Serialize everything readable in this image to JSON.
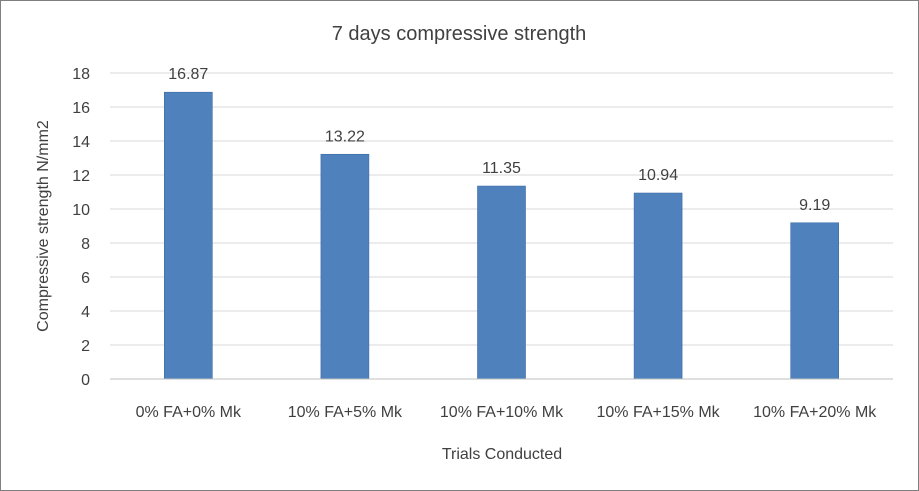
{
  "chart_data": {
    "type": "bar",
    "title": "7 days compressive strength",
    "xlabel": "Trials Conducted",
    "ylabel": "Compressive strength N/mm2",
    "categories": [
      "0% FA+0% Mk",
      "10% FA+5% Mk",
      "10% FA+10% Mk",
      "10% FA+15% Mk",
      "10% FA+20% Mk"
    ],
    "values": [
      16.87,
      13.22,
      11.35,
      10.94,
      9.19
    ],
    "data_labels": [
      "16.87",
      "13.22",
      "11.35",
      "10.94",
      "9.19"
    ],
    "ylim": [
      0,
      18
    ],
    "yticks": [
      0,
      2,
      4,
      6,
      8,
      10,
      12,
      14,
      16,
      18
    ],
    "grid": true,
    "legend": "none",
    "colors": {
      "bar": "#4f81bd",
      "bar_stroke": "#3c6ca8",
      "grid": "#d9d9d9",
      "text": "#404040",
      "title": "#404040"
    }
  }
}
